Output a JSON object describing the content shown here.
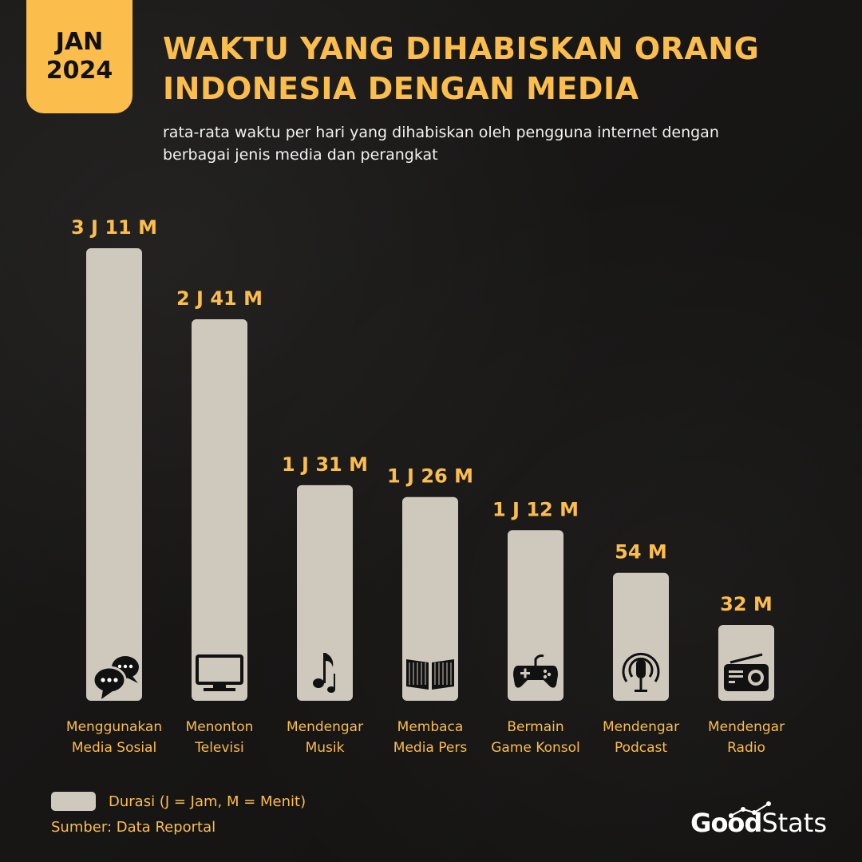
{
  "badge": {
    "month": "JAN",
    "year": "2024"
  },
  "title": {
    "line1": "WAKTU YANG DIHABISKAN ORANG",
    "line2": "INDONESIA DENGAN MEDIA"
  },
  "subtitle": {
    "line1": "rata-rata waktu per hari yang dihabiskan oleh pengguna internet dengan",
    "line2": "berbagai jenis media dan perangkat"
  },
  "chart_data": {
    "type": "bar",
    "categories": [
      [
        "Menggunakan",
        "Media Sosial"
      ],
      [
        "Menonton",
        "Televisi"
      ],
      [
        "Mendengar",
        "Musik"
      ],
      [
        "Membaca",
        "Media Pers"
      ],
      [
        "Bermain",
        "Game Konsol"
      ],
      [
        "Mendengar",
        "Podcast"
      ],
      [
        "Mendengar",
        "Radio"
      ]
    ],
    "values": [
      191,
      161,
      91,
      86,
      72,
      54,
      32
    ],
    "value_labels": [
      "3 J 11 M",
      "2 J 41 M",
      "1 J 31 M",
      "1 J 26 M",
      "1 J 12 M",
      "54 M",
      "32 M"
    ],
    "icons": [
      "chat-bubbles-icon",
      "television-icon",
      "music-note-icon",
      "open-book-icon",
      "gamepad-icon",
      "podcast-microphone-icon",
      "radio-icon"
    ],
    "unit": "minutes",
    "grid": false,
    "colors": {
      "bar": "#cfc8bd",
      "label": "#fbbd4c",
      "icon": "#111111"
    }
  },
  "legend": {
    "label": "Durasi (J = Jam, M = Menit)"
  },
  "source": "Sumber: Data Reportal",
  "brand": {
    "part1": "Good",
    "part2": "Stats"
  }
}
